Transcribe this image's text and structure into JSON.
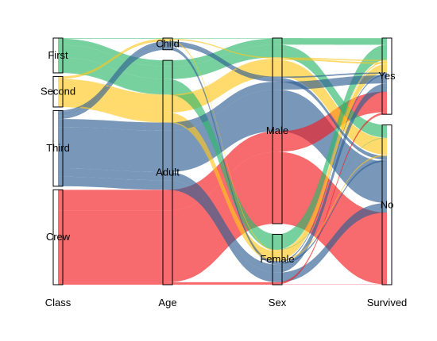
{
  "chart_data": {
    "type": "alluvial",
    "title": "",
    "axes": [
      {
        "name": "Class",
        "categories": [
          "First",
          "Second",
          "Third",
          "Crew"
        ]
      },
      {
        "name": "Age",
        "categories": [
          "Child",
          "Adult"
        ]
      },
      {
        "name": "Sex",
        "categories": [
          "Male",
          "Female"
        ]
      },
      {
        "name": "Survived",
        "categories": [
          "Yes",
          "No"
        ]
      }
    ],
    "flow_color_by": "Class",
    "flow_colors": {
      "First": "#2eb86b",
      "Second": "#ffc61e",
      "Third": "#2f5f94",
      "Crew": "#f21a1f"
    },
    "flows": [
      {
        "Class": "First",
        "Age": "Child",
        "Sex": "Male",
        "Survived": "Yes",
        "count": 5
      },
      {
        "Class": "First",
        "Age": "Child",
        "Sex": "Female",
        "Survived": "Yes",
        "count": 1
      },
      {
        "Class": "First",
        "Age": "Adult",
        "Sex": "Male",
        "Survived": "Yes",
        "count": 57
      },
      {
        "Class": "First",
        "Age": "Adult",
        "Sex": "Male",
        "Survived": "No",
        "count": 118
      },
      {
        "Class": "First",
        "Age": "Adult",
        "Sex": "Female",
        "Survived": "Yes",
        "count": 140
      },
      {
        "Class": "First",
        "Age": "Adult",
        "Sex": "Female",
        "Survived": "No",
        "count": 4
      },
      {
        "Class": "Second",
        "Age": "Child",
        "Sex": "Male",
        "Survived": "Yes",
        "count": 11
      },
      {
        "Class": "Second",
        "Age": "Child",
        "Sex": "Female",
        "Survived": "Yes",
        "count": 13
      },
      {
        "Class": "Second",
        "Age": "Adult",
        "Sex": "Male",
        "Survived": "Yes",
        "count": 14
      },
      {
        "Class": "Second",
        "Age": "Adult",
        "Sex": "Male",
        "Survived": "No",
        "count": 154
      },
      {
        "Class": "Second",
        "Age": "Adult",
        "Sex": "Female",
        "Survived": "Yes",
        "count": 80
      },
      {
        "Class": "Second",
        "Age": "Adult",
        "Sex": "Female",
        "Survived": "No",
        "count": 13
      },
      {
        "Class": "Third",
        "Age": "Child",
        "Sex": "Male",
        "Survived": "Yes",
        "count": 13
      },
      {
        "Class": "Third",
        "Age": "Child",
        "Sex": "Male",
        "Survived": "No",
        "count": 35
      },
      {
        "Class": "Third",
        "Age": "Child",
        "Sex": "Female",
        "Survived": "Yes",
        "count": 14
      },
      {
        "Class": "Third",
        "Age": "Child",
        "Sex": "Female",
        "Survived": "No",
        "count": 17
      },
      {
        "Class": "Third",
        "Age": "Adult",
        "Sex": "Male",
        "Survived": "Yes",
        "count": 75
      },
      {
        "Class": "Third",
        "Age": "Adult",
        "Sex": "Male",
        "Survived": "No",
        "count": 387
      },
      {
        "Class": "Third",
        "Age": "Adult",
        "Sex": "Female",
        "Survived": "Yes",
        "count": 76
      },
      {
        "Class": "Third",
        "Age": "Adult",
        "Sex": "Female",
        "Survived": "No",
        "count": 89
      },
      {
        "Class": "Crew",
        "Age": "Adult",
        "Sex": "Male",
        "Survived": "Yes",
        "count": 192
      },
      {
        "Class": "Crew",
        "Age": "Adult",
        "Sex": "Male",
        "Survived": "No",
        "count": 670
      },
      {
        "Class": "Crew",
        "Age": "Adult",
        "Sex": "Female",
        "Survived": "Yes",
        "count": 20
      },
      {
        "Class": "Crew",
        "Age": "Adult",
        "Sex": "Female",
        "Survived": "No",
        "count": 3
      }
    ],
    "grid": false,
    "legend": "none"
  }
}
